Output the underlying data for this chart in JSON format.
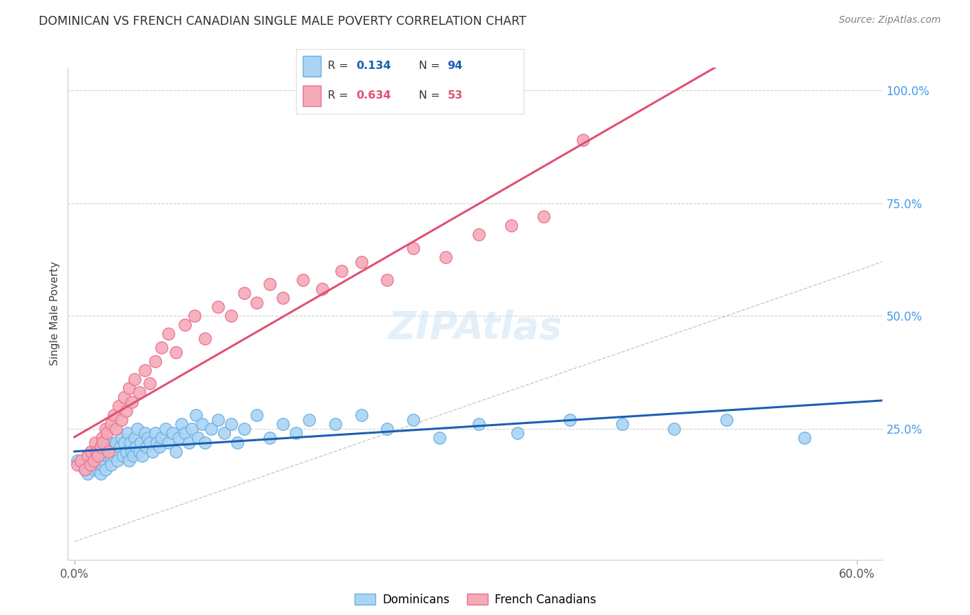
{
  "title": "DOMINICAN VS FRENCH CANADIAN SINGLE MALE POVERTY CORRELATION CHART",
  "source": "Source: ZipAtlas.com",
  "ylabel": "Single Male Poverty",
  "ytick_labels_right": [
    "100.0%",
    "75.0%",
    "50.0%",
    "25.0%"
  ],
  "ytick_values_right": [
    1.0,
    0.75,
    0.5,
    0.25
  ],
  "xmin": -0.005,
  "xmax": 0.62,
  "ymin": -0.04,
  "ymax": 1.05,
  "dominican_color": "#aad4f5",
  "french_color": "#f5aab8",
  "dominican_edge": "#6aaede",
  "french_edge": "#e87090",
  "trendline_blue": "#1a5fb0",
  "trendline_pink": "#e05070",
  "diag_color": "#c8c8c8",
  "legend_blue_Rval": "0.134",
  "legend_blue_Nval": "94",
  "legend_pink_Rval": "0.634",
  "legend_pink_Nval": "53",
  "grid_color": "#d0d0d0",
  "background_color": "#ffffff",
  "title_color": "#303030",
  "source_color": "#808080",
  "axis_label_color": "#404040",
  "right_tick_color": "#4499ee",
  "dom_x": [
    0.002,
    0.005,
    0.008,
    0.01,
    0.01,
    0.012,
    0.013,
    0.014,
    0.015,
    0.015,
    0.016,
    0.017,
    0.018,
    0.018,
    0.019,
    0.02,
    0.02,
    0.021,
    0.022,
    0.022,
    0.023,
    0.024,
    0.025,
    0.025,
    0.026,
    0.027,
    0.028,
    0.028,
    0.03,
    0.03,
    0.031,
    0.032,
    0.033,
    0.035,
    0.036,
    0.037,
    0.038,
    0.04,
    0.041,
    0.042,
    0.043,
    0.044,
    0.045,
    0.046,
    0.047,
    0.048,
    0.05,
    0.051,
    0.052,
    0.054,
    0.055,
    0.056,
    0.058,
    0.06,
    0.062,
    0.063,
    0.065,
    0.067,
    0.07,
    0.072,
    0.075,
    0.078,
    0.08,
    0.082,
    0.085,
    0.088,
    0.09,
    0.093,
    0.095,
    0.098,
    0.1,
    0.105,
    0.11,
    0.115,
    0.12,
    0.125,
    0.13,
    0.14,
    0.15,
    0.16,
    0.17,
    0.18,
    0.2,
    0.22,
    0.24,
    0.26,
    0.28,
    0.31,
    0.34,
    0.38,
    0.42,
    0.46,
    0.5,
    0.56
  ],
  "dom_y": [
    0.18,
    0.17,
    0.16,
    0.19,
    0.15,
    0.17,
    0.2,
    0.18,
    0.16,
    0.19,
    0.17,
    0.18,
    0.2,
    0.16,
    0.17,
    0.19,
    0.15,
    0.18,
    0.2,
    0.17,
    0.18,
    0.16,
    0.21,
    0.19,
    0.22,
    0.2,
    0.18,
    0.17,
    0.19,
    0.21,
    0.2,
    0.22,
    0.18,
    0.21,
    0.23,
    0.19,
    0.22,
    0.2,
    0.24,
    0.18,
    0.22,
    0.2,
    0.19,
    0.23,
    0.21,
    0.25,
    0.2,
    0.22,
    0.19,
    0.24,
    0.21,
    0.23,
    0.22,
    0.2,
    0.24,
    0.22,
    0.21,
    0.23,
    0.25,
    0.22,
    0.24,
    0.2,
    0.23,
    0.26,
    0.24,
    0.22,
    0.25,
    0.28,
    0.23,
    0.26,
    0.22,
    0.25,
    0.27,
    0.24,
    0.26,
    0.22,
    0.25,
    0.28,
    0.23,
    0.26,
    0.24,
    0.27,
    0.26,
    0.28,
    0.25,
    0.27,
    0.23,
    0.26,
    0.24,
    0.27,
    0.26,
    0.25,
    0.27,
    0.23
  ],
  "fr_x": [
    0.002,
    0.005,
    0.008,
    0.01,
    0.012,
    0.013,
    0.015,
    0.016,
    0.017,
    0.018,
    0.02,
    0.021,
    0.022,
    0.024,
    0.025,
    0.026,
    0.028,
    0.03,
    0.032,
    0.034,
    0.036,
    0.038,
    0.04,
    0.042,
    0.044,
    0.046,
    0.05,
    0.054,
    0.058,
    0.062,
    0.067,
    0.072,
    0.078,
    0.085,
    0.092,
    0.1,
    0.11,
    0.12,
    0.13,
    0.14,
    0.15,
    0.16,
    0.175,
    0.19,
    0.205,
    0.22,
    0.24,
    0.26,
    0.285,
    0.31,
    0.335,
    0.36,
    0.39
  ],
  "fr_y": [
    0.17,
    0.18,
    0.16,
    0.19,
    0.17,
    0.2,
    0.18,
    0.22,
    0.2,
    0.19,
    0.21,
    0.23,
    0.22,
    0.25,
    0.24,
    0.2,
    0.26,
    0.28,
    0.25,
    0.3,
    0.27,
    0.32,
    0.29,
    0.34,
    0.31,
    0.36,
    0.33,
    0.38,
    0.35,
    0.4,
    0.43,
    0.46,
    0.42,
    0.48,
    0.5,
    0.45,
    0.52,
    0.5,
    0.55,
    0.53,
    0.57,
    0.54,
    0.58,
    0.56,
    0.6,
    0.62,
    0.58,
    0.65,
    0.63,
    0.68,
    0.7,
    0.72,
    0.89
  ]
}
